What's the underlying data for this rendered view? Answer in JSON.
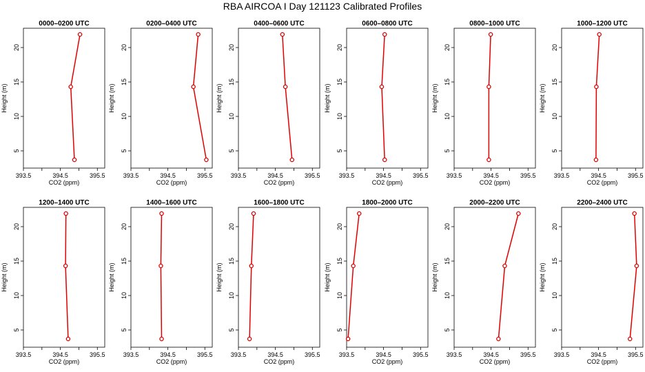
{
  "title": "RBA AIRCOA I  Day 121123  Calibrated Profiles",
  "chart_data": {
    "type": "line",
    "xlabel": "CO2 (ppm)",
    "ylabel": "Height (m)",
    "xlim": [
      393.5,
      395.7
    ],
    "ylim": [
      2.5,
      22.8
    ],
    "xticks": [
      "393.5",
      "394.5",
      "395.5"
    ],
    "yticks": [
      "5",
      "10",
      "15",
      "20"
    ],
    "heights": [
      3.7,
      14.3,
      21.9
    ],
    "line_color": "#e00000",
    "panels": [
      {
        "title": "0000–0200 UTC",
        "x": [
          394.88,
          394.78,
          395.03
        ]
      },
      {
        "title": "0200–0400 UTC",
        "x": [
          395.54,
          395.19,
          395.32
        ]
      },
      {
        "title": "0400–0600 UTC",
        "x": [
          394.95,
          394.77,
          394.69
        ]
      },
      {
        "title": "0600–0800 UTC",
        "x": [
          394.53,
          394.45,
          394.53
        ]
      },
      {
        "title": "0800–1000 UTC",
        "x": [
          394.44,
          394.44,
          394.49
        ]
      },
      {
        "title": "1000–1200 UTC",
        "x": [
          394.43,
          394.44,
          394.52
        ]
      },
      {
        "title": "1200–1400 UTC",
        "x": [
          394.71,
          394.64,
          394.65
        ]
      },
      {
        "title": "1400–1600 UTC",
        "x": [
          394.33,
          394.31,
          394.33
        ]
      },
      {
        "title": "1600–1800 UTC",
        "x": [
          393.8,
          393.85,
          393.91
        ]
      },
      {
        "title": "1800–2000 UTC",
        "x": [
          393.54,
          393.68,
          393.84
        ]
      },
      {
        "title": "2000–2200 UTC",
        "x": [
          394.7,
          394.87,
          395.24
        ]
      },
      {
        "title": "2200–2400 UTC",
        "x": [
          395.35,
          395.53,
          395.47
        ]
      }
    ]
  }
}
